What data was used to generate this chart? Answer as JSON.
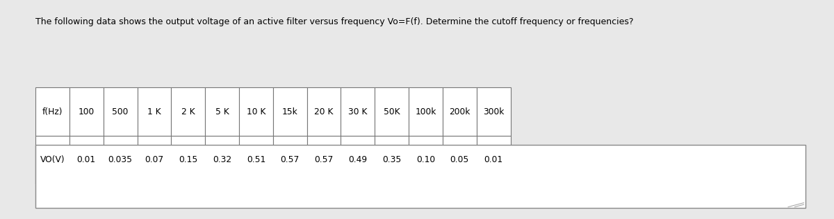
{
  "title": "The following data shows the output voltage of an active filter versus frequency Vo=F(f). Determine the cutoff frequency or frequencies?",
  "table_headers": [
    "f(Hz)",
    "100",
    "500",
    "1 K",
    "2 K",
    "5 K",
    "10 K",
    "15k",
    "20 K",
    "30 K",
    "50K",
    "100k",
    "200k",
    "300k"
  ],
  "table_row_label": "VO(V)",
  "table_values": [
    "0.01",
    "0.035",
    "0.07",
    "0.15",
    "0.32",
    "0.51",
    "0.57",
    "0.57",
    "0.49",
    "0.35",
    "0.10",
    "0.05",
    "0.01"
  ],
  "background_color": "#d6eaf5",
  "table_bg": "#ffffff",
  "outer_bg": "#e8e8e8",
  "border_color": "#777777",
  "text_color": "#000000",
  "title_fontsize": 9.0,
  "table_fontsize": 8.8,
  "white_box_bg": "#ffffff",
  "white_box_border": "#888888",
  "left_bar_color": "#c8c8cc",
  "resize_color": "#aaaaaa"
}
